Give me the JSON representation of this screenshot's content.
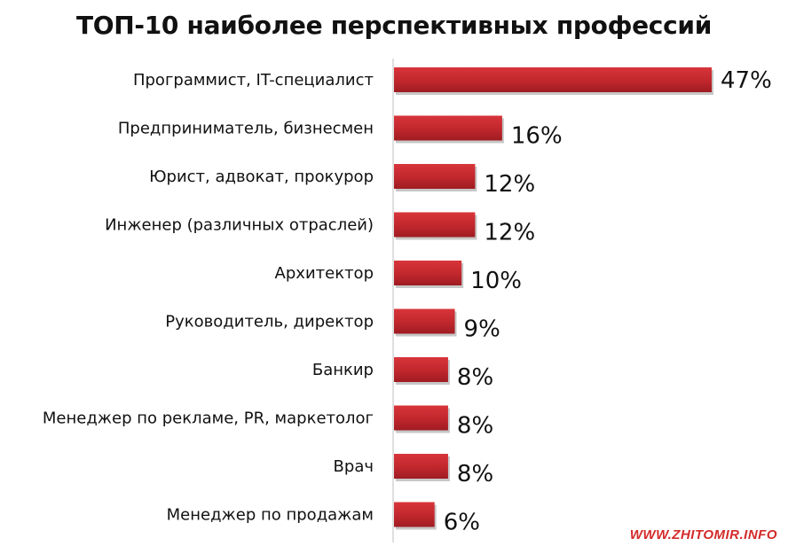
{
  "chart_data": {
    "type": "bar",
    "orientation": "horizontal",
    "title": "ТОП-10 наиболее перспективных профессий",
    "categories": [
      "Программист, IT-специалист",
      "Предприниматель, бизнесмен",
      "Юрист, адвокат, прокурор",
      "Инженер (различных отраслей)",
      "Архитектор",
      "Руководитель, директор",
      "Банкир",
      "Менеджер по рекламе, PR, маркетолог",
      "Врач",
      "Менеджер по продажам"
    ],
    "values": [
      47,
      16,
      12,
      12,
      10,
      9,
      8,
      8,
      8,
      6
    ],
    "value_labels": [
      "47%",
      "16%",
      "12%",
      "12%",
      "10%",
      "9%",
      "8%",
      "8%",
      "8%",
      "6%"
    ],
    "unit": "%",
    "bar_color": "#c0272d",
    "grid": false,
    "legend": "none"
  },
  "watermark": "WWW.ZHITOMIR.INFO"
}
